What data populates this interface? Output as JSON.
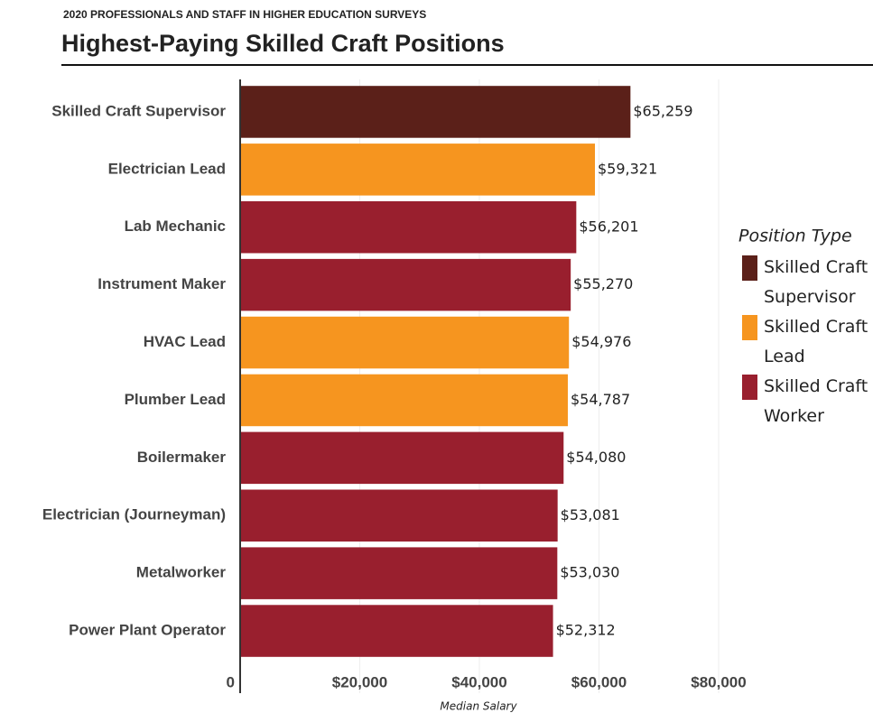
{
  "chart_data": {
    "type": "bar",
    "supertitle": "2020 PROFESSIONALS AND STAFF IN HIGHER EDUCATION SURVEYS",
    "title": "Highest-Paying Skilled Craft Positions",
    "x_label": "Median Salary",
    "legend_title": "Position Type",
    "categories": [
      "Skilled Craft Supervisor",
      "Electrician Lead",
      "Lab Mechanic",
      "Instrument Maker",
      "HVAC Lead",
      "Plumber Lead",
      "Boilermaker",
      "Electrician (Journeyman)",
      "Metalworker",
      "Power Plant Operator"
    ],
    "series": [
      {
        "name": "Skilled Craft Supervisor",
        "color": "#5b2019",
        "values": [
          65259,
          null,
          null,
          null,
          null,
          null,
          null,
          null,
          null,
          null
        ],
        "value_labels": [
          "$65,259",
          null,
          null,
          null,
          null,
          null,
          null,
          null,
          null,
          null
        ]
      },
      {
        "name": "Skilled Craft Lead",
        "color": "#f6951f",
        "values": [
          null,
          59321,
          null,
          null,
          54976,
          54787,
          null,
          null,
          null,
          null
        ],
        "value_labels": [
          null,
          "$59,321",
          null,
          null,
          "$54,976",
          "$54,787",
          null,
          null,
          null,
          null
        ]
      },
      {
        "name": "Skilled Craft Worker",
        "color": "#991f2e",
        "values": [
          null,
          null,
          56201,
          55270,
          null,
          null,
          54080,
          53081,
          53030,
          52312
        ],
        "value_labels": [
          null,
          null,
          "$56,201",
          "$55,270",
          null,
          null,
          "$54,080",
          "$53,081",
          "$53,030",
          "$52,312"
        ]
      }
    ],
    "xlim": [
      0,
      80000
    ],
    "xticks": [
      0,
      {
        "value": 20000,
        "label": "$20,000"
      },
      {
        "value": 40000,
        "label": "$40,000"
      },
      {
        "value": 60000,
        "label": "$60,000"
      },
      {
        "value": 80000,
        "label": "$80,000"
      }
    ],
    "grid": true
  }
}
